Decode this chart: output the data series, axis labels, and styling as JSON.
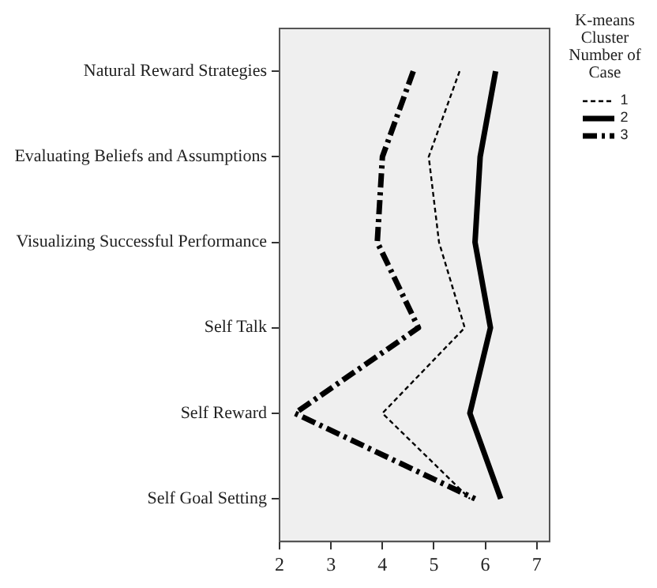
{
  "chart_data": {
    "type": "line",
    "orientation": "horizontal",
    "categories": [
      "Natural Reward Strategies",
      "Evaluating Beliefs and Assumptions",
      "Visualizing Successful Performance",
      "Self Talk",
      "Self Reward",
      "Self Goal Setting"
    ],
    "series": [
      {
        "name": "1",
        "color": "#000000",
        "line_style": "dotted",
        "values": [
          5.5,
          4.9,
          5.1,
          5.6,
          4.0,
          5.7
        ]
      },
      {
        "name": "2",
        "color": "#000000",
        "line_style": "solid",
        "values": [
          6.2,
          5.9,
          5.8,
          6.1,
          5.7,
          6.3
        ]
      },
      {
        "name": "3",
        "color": "#000000",
        "line_style": "dashed",
        "values": [
          4.6,
          4.0,
          3.9,
          4.7,
          2.3,
          5.8
        ]
      }
    ],
    "xlim": [
      2,
      7.25
    ],
    "xticks": [
      2,
      3,
      4,
      5,
      6,
      7
    ],
    "grid": false,
    "marker": "none",
    "legend": "top right",
    "legend_title": "K-means Cluster Number of Case"
  }
}
